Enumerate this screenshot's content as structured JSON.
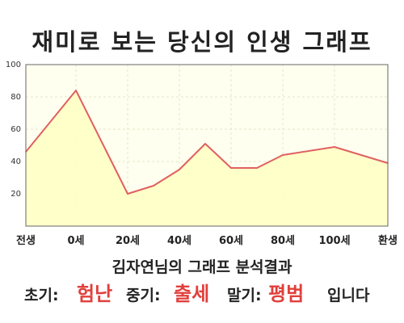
{
  "chart_data": {
    "type": "area",
    "title": "재미로 보는 당신의 인생 그래프",
    "x_tick_labels": [
      "전생",
      "0세",
      "20세",
      "40세",
      "60세",
      "80세",
      "100세",
      "환생"
    ],
    "y_ticks": [
      20,
      40,
      60,
      80,
      100
    ],
    "ylim": [
      0,
      100
    ],
    "grid": true,
    "series": [
      {
        "points": [
          {
            "x": "전생",
            "y": 46
          },
          {
            "x": "0세",
            "y": 84
          },
          {
            "x": "20세",
            "y": 20
          },
          {
            "x": "30세",
            "y": 25
          },
          {
            "x": "40세",
            "y": 35
          },
          {
            "x": "50세",
            "y": 51
          },
          {
            "x": "60세",
            "y": 36
          },
          {
            "x": "70세",
            "y": 36
          },
          {
            "x": "80세",
            "y": 44
          },
          {
            "x": "100세",
            "y": 49
          },
          {
            "x": "환생",
            "y": 39
          }
        ]
      }
    ]
  },
  "result": {
    "heading": "김자연님의 그래프 분석결과",
    "early_label": "초기:",
    "early_value": "험난",
    "middle_label": "중기:",
    "middle_value": "출세",
    "late_label": "말기:",
    "late_value": "평범",
    "ending": "입니다"
  },
  "colors": {
    "line": "#e06060",
    "fill": "#ffffc4",
    "plot_background": "#fffff0",
    "grid": "#e6e6c8",
    "highlight_text": "#e0403c"
  }
}
